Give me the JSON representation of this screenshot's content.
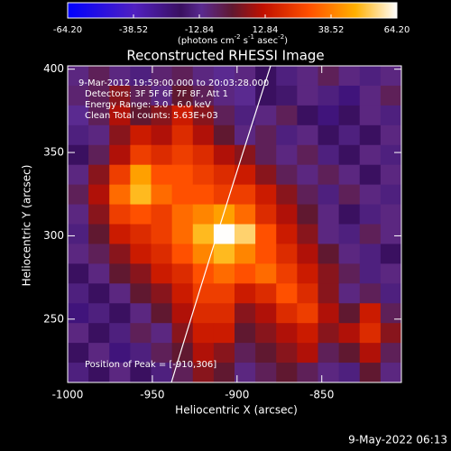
{
  "chart_data": {
    "type": "heatmap",
    "title": "Reconstructed RHESSI Image",
    "x_label": "Heliocentric X (arcsec)",
    "y_label": "Heliocentric Y (arcsec)",
    "colorbar_label": [
      "(photons cm",
      "-2",
      " s",
      "-1",
      " asec",
      "-2",
      ")"
    ],
    "colorbar_lim": [
      -64.2,
      64.2
    ],
    "colorbar_ticks": [
      {
        "value": -64.2,
        "label": "-64.20"
      },
      {
        "value": -38.52,
        "label": "-38.52"
      },
      {
        "value": -12.84,
        "label": "-12.84"
      },
      {
        "value": 12.84,
        "label": "12.84"
      },
      {
        "value": 38.52,
        "label": "38.52"
      },
      {
        "value": 64.2,
        "label": "64.20"
      }
    ],
    "colorscale": [
      [
        -64.2,
        "#0000ff"
      ],
      [
        -38,
        "#5020c0"
      ],
      [
        -20,
        "#3a1060"
      ],
      [
        -12,
        "#5a2a90"
      ],
      [
        0,
        "#601830"
      ],
      [
        12,
        "#c01000"
      ],
      [
        30,
        "#ff5000"
      ],
      [
        48,
        "#ffb000"
      ],
      [
        64.2,
        "#ffffff"
      ]
    ],
    "annotations": [
      "9-Mar-2012 19:59:00.000 to 20:03:28.000",
      "Detectors: 3F 5F 6F 7F 8F, Att 1",
      "Energy Range: 3.0 - 6.0 keV",
      "Clean     Total counts: 5.63E+03"
    ],
    "peak_label": "Position of Peak = [-910,306]",
    "footer": "9-May-2022 06:13",
    "xlim": [
      -1000,
      -803
    ],
    "ylim": [
      212,
      402
    ],
    "xticks": [
      -1000,
      -950,
      -900,
      -850
    ],
    "yticks": [
      250,
      300,
      350,
      400
    ],
    "z": [
      [
        -10,
        -5,
        -10,
        -15,
        -8,
        -5,
        -10,
        -12,
        -10,
        -20,
        -15,
        -10,
        -5,
        -10,
        -15,
        -10
      ],
      [
        -8,
        -5,
        5,
        -5,
        -10,
        0,
        -5,
        -10,
        -12,
        -20,
        -18,
        -10,
        -15,
        -25,
        -10,
        -5
      ],
      [
        -12,
        -5,
        10,
        0,
        5,
        15,
        5,
        -5,
        -15,
        -10,
        -5,
        -20,
        -25,
        -20,
        -10,
        -15
      ],
      [
        -15,
        -10,
        5,
        15,
        10,
        20,
        10,
        0,
        -10,
        -5,
        -15,
        -10,
        -20,
        -15,
        -20,
        -10
      ],
      [
        -20,
        -5,
        10,
        25,
        20,
        25,
        20,
        10,
        5,
        -5,
        -10,
        -5,
        -15,
        -20,
        -10,
        -15
      ],
      [
        -10,
        5,
        25,
        45,
        30,
        30,
        25,
        20,
        15,
        5,
        -5,
        -10,
        -5,
        -10,
        -20,
        -10
      ],
      [
        -5,
        10,
        35,
        50,
        35,
        30,
        30,
        25,
        25,
        15,
        5,
        -5,
        -15,
        -5,
        -10,
        -15
      ],
      [
        -10,
        5,
        25,
        30,
        25,
        35,
        40,
        45,
        35,
        20,
        10,
        0,
        -10,
        -20,
        -15,
        -10
      ],
      [
        -15,
        0,
        15,
        20,
        25,
        35,
        50,
        64,
        55,
        30,
        15,
        5,
        -10,
        -15,
        -5,
        -10
      ],
      [
        -10,
        -5,
        5,
        15,
        20,
        30,
        40,
        50,
        40,
        30,
        20,
        10,
        0,
        -10,
        -15,
        -20
      ],
      [
        -20,
        -10,
        0,
        5,
        15,
        20,
        30,
        35,
        30,
        35,
        25,
        15,
        5,
        -5,
        -15,
        -10
      ],
      [
        -15,
        -20,
        -10,
        0,
        5,
        15,
        25,
        25,
        15,
        20,
        30,
        20,
        5,
        -10,
        -5,
        -15
      ],
      [
        -25,
        -15,
        -20,
        -10,
        0,
        10,
        20,
        20,
        5,
        10,
        20,
        25,
        10,
        0,
        15,
        -5
      ],
      [
        -10,
        -20,
        -15,
        -5,
        -10,
        5,
        15,
        15,
        0,
        5,
        10,
        15,
        5,
        10,
        20,
        5
      ],
      [
        -20,
        -10,
        -25,
        -15,
        -5,
        0,
        10,
        5,
        -5,
        0,
        5,
        10,
        -5,
        0,
        10,
        -5
      ],
      [
        -15,
        -20,
        -10,
        -20,
        -15,
        -5,
        5,
        0,
        -10,
        -5,
        0,
        -5,
        -10,
        -15,
        0,
        -10
      ]
    ]
  }
}
